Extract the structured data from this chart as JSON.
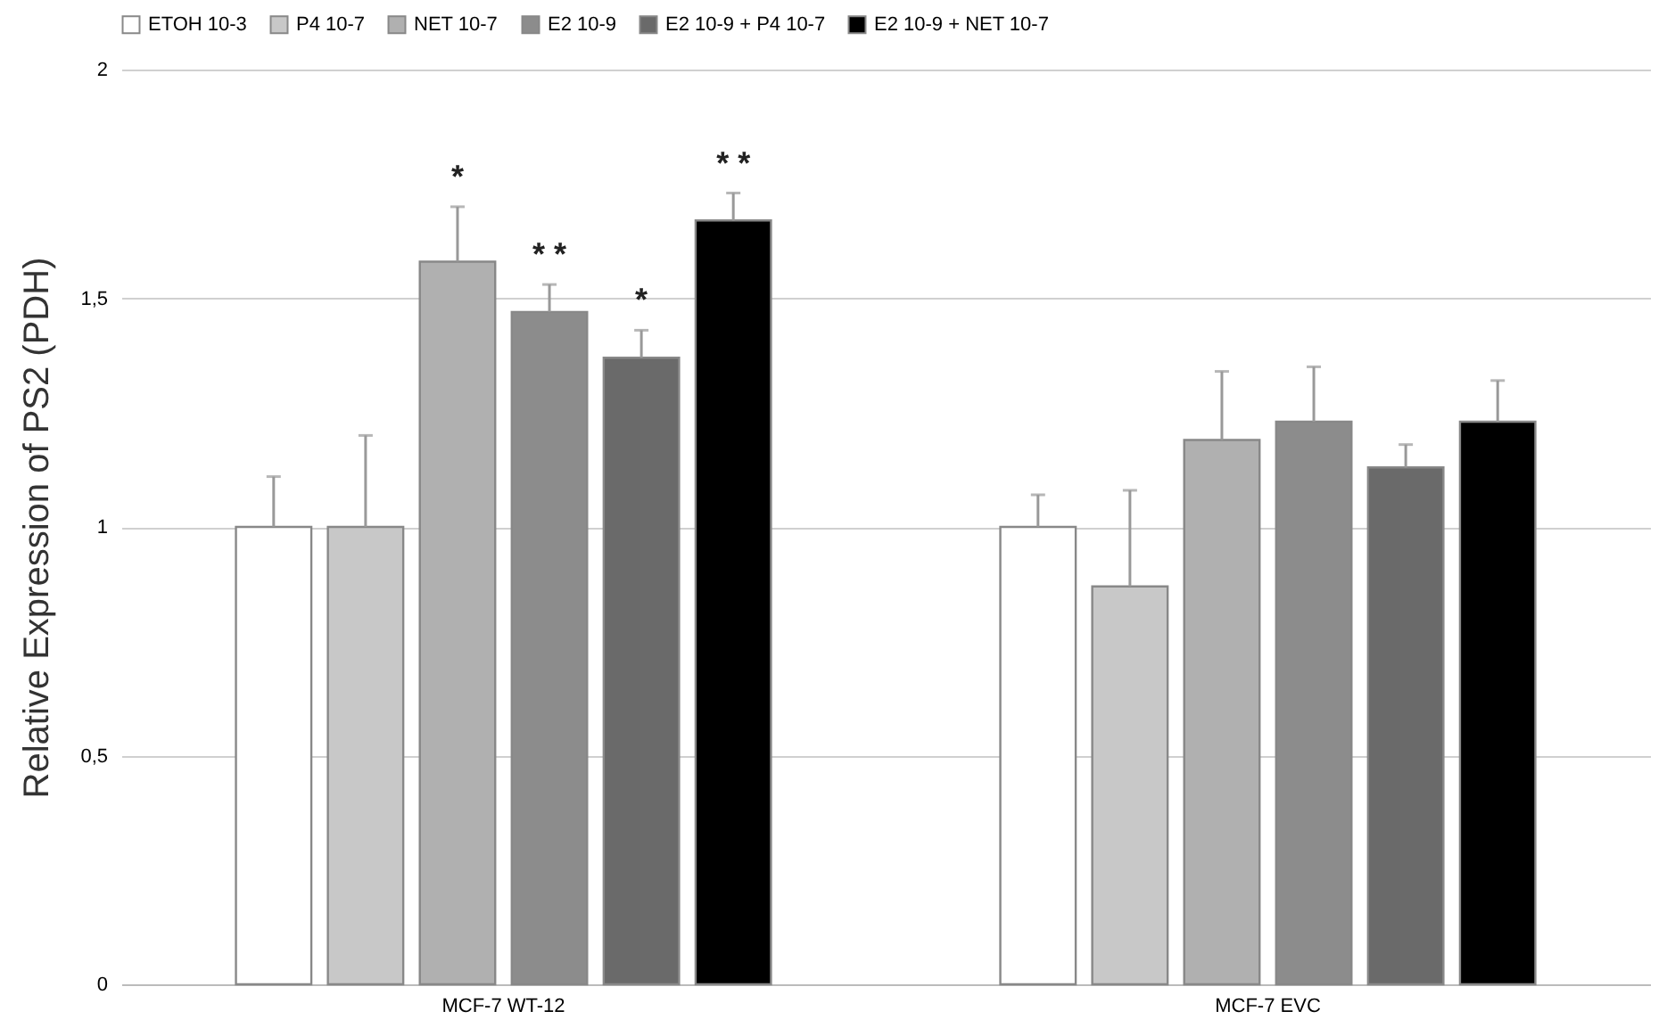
{
  "chart_data": {
    "type": "bar",
    "ylabel": "Relative Expression of PS2 (PDH)",
    "categories": [
      "MCF-7 WT-12",
      "MCF-7 EVC"
    ],
    "series": [
      {
        "name": "ETOH 10-3",
        "color": "#ffffff",
        "values": [
          1.0,
          1.0
        ],
        "errors": [
          0.11,
          0.07
        ]
      },
      {
        "name": "P4 10-7",
        "color": "#c8c8c8",
        "values": [
          1.0,
          0.87
        ],
        "errors": [
          0.2,
          0.21
        ]
      },
      {
        "name": "NET 10-7",
        "color": "#b0b0b0",
        "values": [
          1.58,
          1.19
        ],
        "errors": [
          0.12,
          0.15
        ],
        "value_labels": [
          "*",
          null
        ]
      },
      {
        "name": "E2 10-9",
        "color": "#8c8c8c",
        "values": [
          1.47,
          1.23
        ],
        "errors": [
          0.06,
          0.12
        ],
        "value_labels": [
          "* *",
          null
        ]
      },
      {
        "name": "E2 10-9 + P4 10-7",
        "color": "#6a6a6a",
        "values": [
          1.37,
          1.13
        ],
        "errors": [
          0.06,
          0.05
        ],
        "value_labels": [
          "*",
          null
        ]
      },
      {
        "name": "E2 10-9 + NET 10-7",
        "color": "#000000",
        "values": [
          1.67,
          1.23
        ],
        "errors": [
          0.06,
          0.09
        ],
        "value_labels": [
          "* *",
          null
        ]
      }
    ],
    "ylim": [
      0,
      2
    ],
    "yticks": [
      0,
      {
        "value": 0.5,
        "label": "0,5"
      },
      1,
      {
        "value": 1.5,
        "label": "1,5"
      },
      2
    ],
    "grid": "y",
    "legend": "top"
  }
}
